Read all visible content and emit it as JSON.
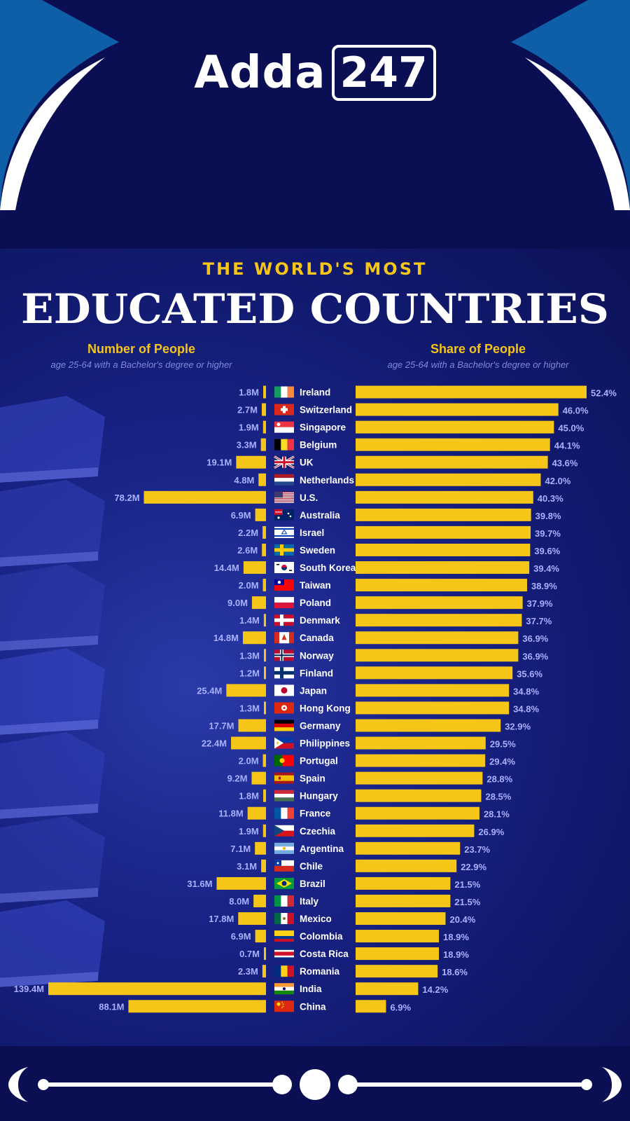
{
  "brand": {
    "logo_word": "Adda",
    "logo_number": "247"
  },
  "colors": {
    "background": "#0a0e52",
    "panel": "#141c78",
    "bar": "#f5c518",
    "accent_gold": "#f5c518",
    "value_label": "#a9b1ff",
    "country_label": "#ffffff",
    "swirl": "#1e88e5"
  },
  "chart_data": {
    "type": "bar",
    "title": "EDUCATED COUNTRIES",
    "supertitle": "THE WORLD'S MOST",
    "left_panel": {
      "heading": "Number of People",
      "subheading": "age 25-64 with a Bachelor's degree or higher",
      "unit": "M"
    },
    "right_panel": {
      "heading": "Share of People",
      "subheading": "age 25-64 with a Bachelor's degree or higher",
      "unit": "%"
    },
    "categories": [
      "Ireland",
      "Switzerland",
      "Singapore",
      "Belgium",
      "UK",
      "Netherlands",
      "U.S.",
      "Australia",
      "Israel",
      "Sweden",
      "South Korea",
      "Taiwan",
      "Poland",
      "Denmark",
      "Canada",
      "Norway",
      "Finland",
      "Japan",
      "Hong Kong",
      "Germany",
      "Philippines",
      "Portugal",
      "Spain",
      "Hungary",
      "France",
      "Czechia",
      "Argentina",
      "Chile",
      "Brazil",
      "Italy",
      "Mexico",
      "Colombia",
      "Costa Rica",
      "Romania",
      "India",
      "China"
    ],
    "series": [
      {
        "name": "Number of People",
        "values": [
          1.8,
          2.7,
          1.9,
          3.3,
          19.1,
          4.8,
          78.2,
          6.9,
          2.2,
          2.6,
          14.4,
          2.0,
          9.0,
          1.4,
          14.8,
          1.3,
          1.2,
          25.4,
          1.3,
          17.7,
          22.4,
          2.0,
          9.2,
          1.8,
          11.8,
          1.9,
          7.1,
          3.1,
          31.6,
          8.0,
          17.8,
          6.9,
          0.7,
          2.3,
          139.4,
          88.1
        ],
        "labels": [
          "1.8M",
          "2.7M",
          "1.9M",
          "3.3M",
          "19.1M",
          "4.8M",
          "78.2M",
          "6.9M",
          "2.2M",
          "2.6M",
          "14.4M",
          "2.0M",
          "9.0M",
          "1.4M",
          "14.8M",
          "1.3M",
          "1.2M",
          "25.4M",
          "1.3M",
          "17.7M",
          "22.4M",
          "2.0M",
          "9.2M",
          "1.8M",
          "11.8M",
          "1.9M",
          "7.1M",
          "3.1M",
          "31.6M",
          "8.0M",
          "17.8M",
          "6.9M",
          "0.7M",
          "2.3M",
          "139.4M",
          "88.1M"
        ]
      },
      {
        "name": "Share of People",
        "values": [
          52.4,
          46.0,
          45.0,
          44.1,
          43.6,
          42.0,
          40.3,
          39.8,
          39.7,
          39.6,
          39.4,
          38.9,
          37.9,
          37.7,
          36.9,
          36.9,
          35.6,
          34.8,
          34.8,
          32.9,
          29.5,
          29.4,
          28.8,
          28.5,
          28.1,
          26.9,
          23.7,
          22.9,
          21.5,
          21.5,
          20.4,
          18.9,
          18.9,
          18.6,
          14.2,
          6.9
        ],
        "labels": [
          "52.4%",
          "46.0%",
          "45.0%",
          "44.1%",
          "43.6%",
          "42.0%",
          "40.3%",
          "39.8%",
          "39.7%",
          "39.6%",
          "39.4%",
          "38.9%",
          "37.9%",
          "37.7%",
          "36.9%",
          "36.9%",
          "35.6%",
          "34.8%",
          "34.8%",
          "32.9%",
          "29.5%",
          "29.4%",
          "28.8%",
          "28.5%",
          "28.1%",
          "26.9%",
          "23.7%",
          "22.9%",
          "21.5%",
          "21.5%",
          "20.4%",
          "18.9%",
          "18.9%",
          "18.6%",
          "14.2%",
          "6.9%"
        ]
      }
    ],
    "xlim_left": [
      0,
      139.4
    ],
    "xlim_right": [
      0,
      52.4
    ],
    "grid": false
  },
  "flags": [
    "ireland-flag-icon",
    "switzerland-flag-icon",
    "singapore-flag-icon",
    "belgium-flag-icon",
    "uk-flag-icon",
    "netherlands-flag-icon",
    "us-flag-icon",
    "australia-flag-icon",
    "israel-flag-icon",
    "sweden-flag-icon",
    "south-korea-flag-icon",
    "taiwan-flag-icon",
    "poland-flag-icon",
    "denmark-flag-icon",
    "canada-flag-icon",
    "norway-flag-icon",
    "finland-flag-icon",
    "japan-flag-icon",
    "hong-kong-flag-icon",
    "germany-flag-icon",
    "philippines-flag-icon",
    "portugal-flag-icon",
    "spain-flag-icon",
    "hungary-flag-icon",
    "france-flag-icon",
    "czechia-flag-icon",
    "argentina-flag-icon",
    "chile-flag-icon",
    "brazil-flag-icon",
    "italy-flag-icon",
    "mexico-flag-icon",
    "colombia-flag-icon",
    "costa-rica-flag-icon",
    "romania-flag-icon",
    "india-flag-icon",
    "china-flag-icon"
  ]
}
